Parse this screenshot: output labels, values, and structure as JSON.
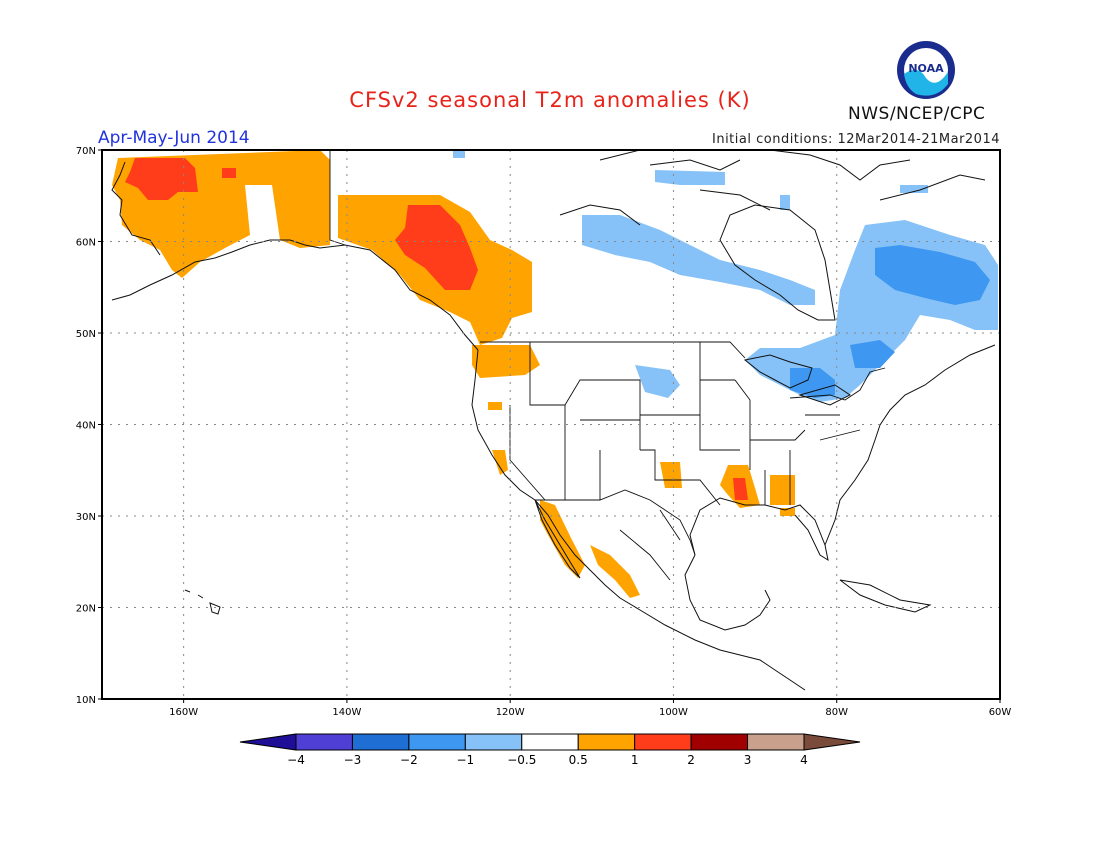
{
  "header": {
    "title": "CFSv2 seasonal T2m anomalies (K)",
    "period": "Apr-May-Jun 2014",
    "initial_conditions": "Initial conditions: 12Mar2014-21Mar2014",
    "agency": "NWS/NCEP/CPC",
    "logo_text": "NOAA"
  },
  "map": {
    "lat_labels": [
      "70N",
      "60N",
      "50N",
      "40N",
      "30N",
      "20N",
      "10N"
    ],
    "lon_labels": [
      "160W",
      "140W",
      "120W",
      "100W",
      "80W",
      "60W"
    ],
    "grid": "dotted",
    "lon_range": [
      -170,
      -60
    ],
    "lat_range": [
      10,
      70
    ]
  },
  "legend": {
    "labels": [
      "-4",
      "-3",
      "-2",
      "-1",
      "-0.5",
      "0.5",
      "1",
      "2",
      "3",
      "4"
    ],
    "colors": [
      "#1e0f96",
      "#4f3fd4",
      "#1f6ed4",
      "#3e97f0",
      "#86c2f7",
      "#ffffff",
      "#ffa300",
      "#ff3d1a",
      "#a00000",
      "#c8a08c",
      "#7a4b3a"
    ]
  },
  "anomaly_regions": [
    {
      "name": "Alaska / Yukon",
      "category": "0.5 to 1"
    },
    {
      "name": "Southwest Alaska",
      "category": "1 to 2"
    },
    {
      "name": "Northern British Columbia",
      "category": "1 to 2"
    },
    {
      "name": "Pacific Northwest coast",
      "category": "0.5 to 1"
    },
    {
      "name": "Baja California",
      "category": "0.5 to 1"
    },
    {
      "name": "Lower Mississippi Valley",
      "category": "1 to 2"
    },
    {
      "name": "Hudson Bay / Quebec",
      "category": "-1 to -0.5"
    },
    {
      "name": "Great Lakes",
      "category": "-2 to -1"
    }
  ]
}
